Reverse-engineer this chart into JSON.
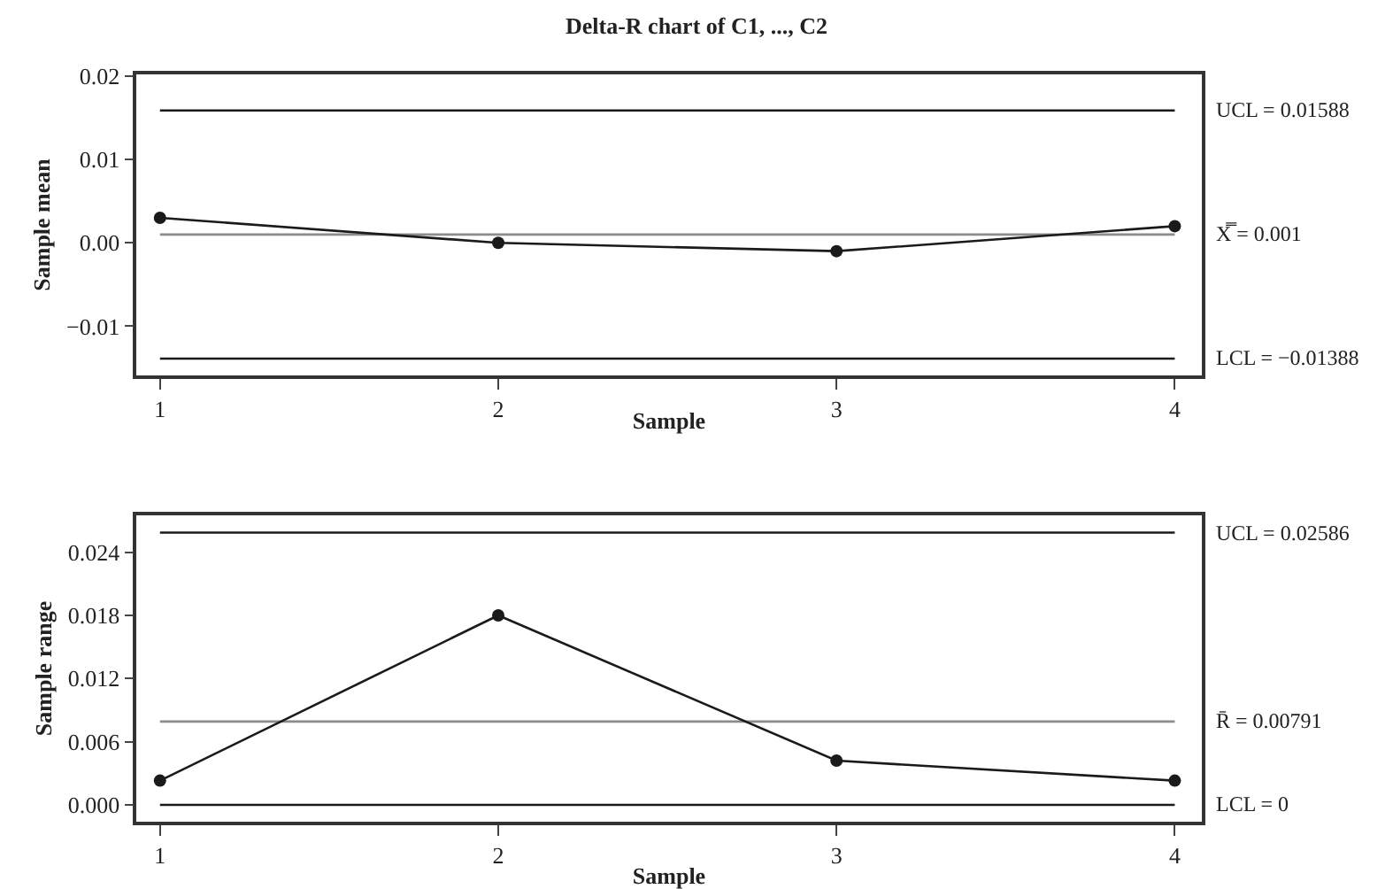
{
  "chart_data": [
    {
      "type": "line",
      "title": "Delta-R chart of C1, ..., C2",
      "xlabel": "Sample",
      "ylabel": "Sample mean",
      "x": [
        1,
        2,
        3,
        4
      ],
      "series": [
        {
          "color": "#1a1a1a",
          "values": [
            0.003,
            0.0,
            -0.001,
            0.002
          ]
        }
      ],
      "xlim": [
        0.93,
        4.08
      ],
      "xticks": [
        1,
        2,
        3,
        4
      ],
      "ylim": [
        -0.0159,
        0.0202
      ],
      "yticks": [
        -0.01,
        {
          "value": 0,
          "label": "0.00"
        },
        0.01,
        0.02
      ],
      "ref_lines": [
        {
          "axis": "y",
          "value": 0.01588,
          "label": "UCL = 0.01588",
          "color": "#1a1a1a"
        },
        {
          "axis": "y",
          "value": 0.001,
          "label": "X̿ = 0.001",
          "color": "#8c8c8c"
        },
        {
          "axis": "y",
          "value": -0.01388,
          "label": "LCL = −0.01388",
          "color": "#1a1a1a"
        }
      ],
      "grid": false,
      "marker": "circle",
      "line_style": "solid"
    },
    {
      "type": "line",
      "xlabel": "Sample",
      "ylabel": "Sample range",
      "x": [
        1,
        2,
        3,
        4
      ],
      "series": [
        {
          "color": "#1a1a1a",
          "values": [
            0.0023,
            0.018,
            0.0042,
            0.0023
          ]
        }
      ],
      "xlim": [
        0.93,
        4.08
      ],
      "xticks": [
        1,
        2,
        3,
        4
      ],
      "ylim": [
        -0.0016,
        0.0275
      ],
      "yticks": [
        {
          "value": 0,
          "label": "0.000"
        },
        0.006,
        0.012,
        0.018,
        0.024
      ],
      "ref_lines": [
        {
          "axis": "y",
          "value": 0.02586,
          "label": "UCL = 0.02586",
          "color": "#1a1a1a"
        },
        {
          "axis": "y",
          "value": 0.00791,
          "label": "R̄ = 0.00791",
          "color": "#8c8c8c"
        },
        {
          "axis": "y",
          "value": 0,
          "label": "LCL = 0",
          "color": "#1a1a1a"
        }
      ],
      "grid": false,
      "marker": "circle",
      "line_style": "solid"
    }
  ]
}
